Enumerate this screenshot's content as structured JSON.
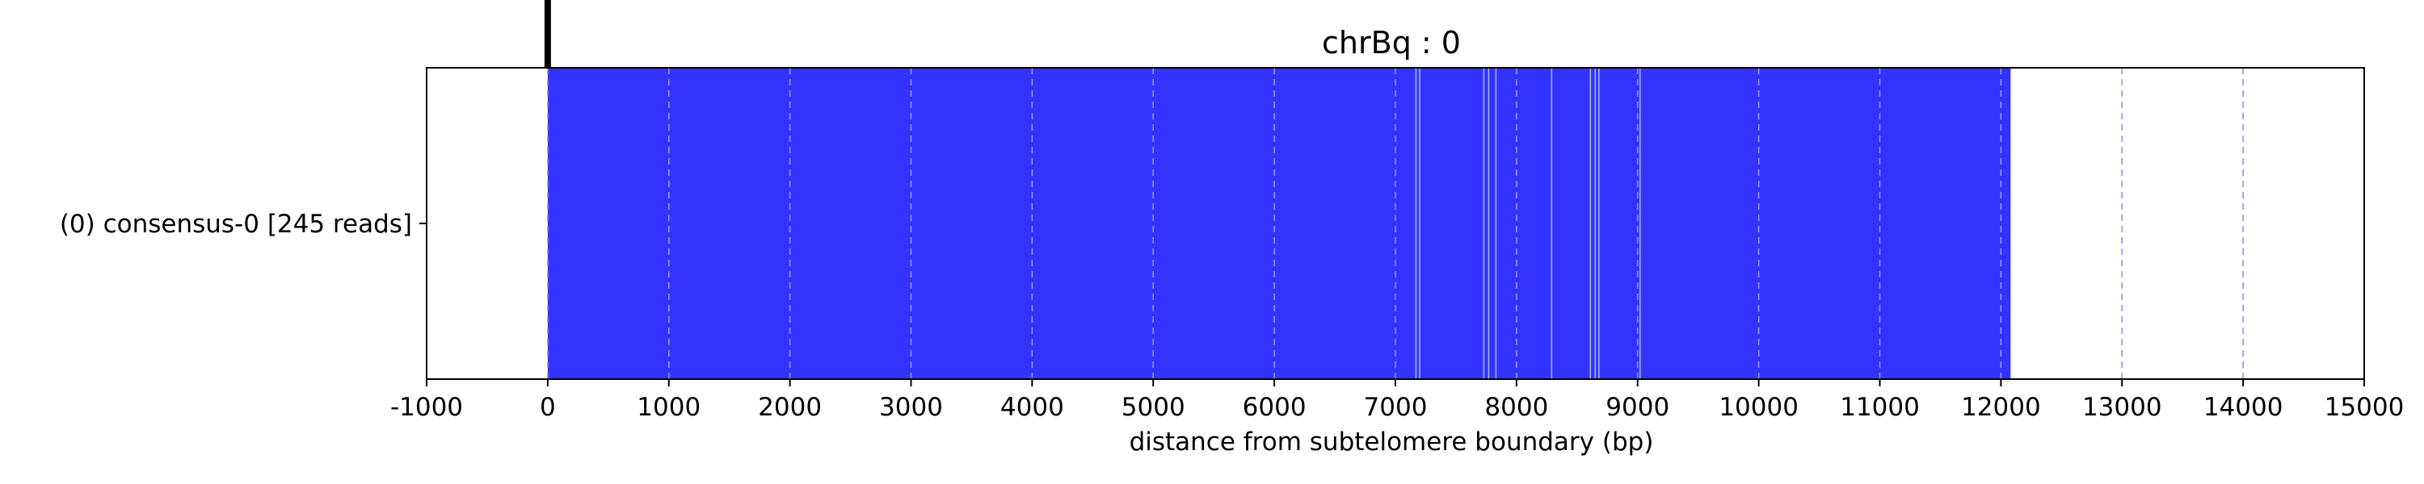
{
  "chart_data": {
    "type": "bar",
    "orientation": "horizontal",
    "title": "chrBq : 0",
    "xlabel": "distance from subtelomere boundary (bp)",
    "ylabel": "",
    "xlim": [
      -1000,
      15000
    ],
    "xticks": [
      -1000,
      0,
      1000,
      2000,
      3000,
      4000,
      5000,
      6000,
      7000,
      8000,
      9000,
      10000,
      11000,
      12000,
      13000,
      14000,
      15000
    ],
    "xtick_labels": [
      "-1000",
      "0",
      "1000",
      "2000",
      "3000",
      "4000",
      "5000",
      "6000",
      "7000",
      "8000",
      "9000",
      "10000",
      "11000",
      "12000",
      "13000",
      "14000",
      "15000"
    ],
    "grid": "vertical dashed",
    "boundary_line_x": 0,
    "categories": [
      "(0) consensus-0 [245 reads]"
    ],
    "series": [
      {
        "color": "#3333ff",
        "bars": [
          {
            "start": 0,
            "end": 12080
          }
        ],
        "internal_breaks": [
          7170,
          7200,
          7730,
          7770,
          7830,
          8290,
          8610,
          8650,
          8680,
          9020
        ]
      }
    ]
  }
}
